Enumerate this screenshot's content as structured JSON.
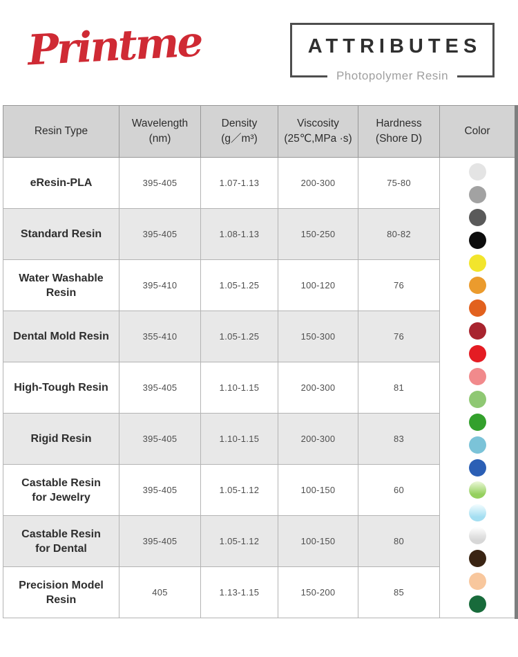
{
  "brand": {
    "logo_text": "Printme",
    "logo_color": "#cf2a34"
  },
  "badge": {
    "title": "ATTRIBUTES",
    "subtitle": "Photopolymer Resin"
  },
  "table": {
    "columns": [
      {
        "label": "Resin Type",
        "sub": ""
      },
      {
        "label": "Wavelength",
        "sub": "(nm)"
      },
      {
        "label": "Density",
        "sub": "(g／m³)"
      },
      {
        "label": "Viscosity",
        "sub": "(25℃,MPa ·s)"
      },
      {
        "label": "Hardness",
        "sub": "(Shore D)"
      },
      {
        "label": "Color",
        "sub": ""
      }
    ],
    "rows": [
      {
        "resin_type": "eResin-PLA",
        "wavelength": "395-405",
        "density": "1.07-1.13",
        "viscosity": "200-300",
        "hardness": "75-80"
      },
      {
        "resin_type": "Standard Resin",
        "wavelength": "395-405",
        "density": "1.08-1.13",
        "viscosity": "150-250",
        "hardness": "80-82"
      },
      {
        "resin_type": "Water Washable\nResin",
        "wavelength": "395-410",
        "density": "1.05-1.25",
        "viscosity": "100-120",
        "hardness": "76"
      },
      {
        "resin_type": "Dental Mold Resin",
        "wavelength": "355-410",
        "density": "1.05-1.25",
        "viscosity": "150-300",
        "hardness": "76"
      },
      {
        "resin_type": "High-Tough Resin",
        "wavelength": "395-405",
        "density": "1.10-1.15",
        "viscosity": "200-300",
        "hardness": "81"
      },
      {
        "resin_type": "Rigid Resin",
        "wavelength": "395-405",
        "density": "1.10-1.15",
        "viscosity": "200-300",
        "hardness": "83"
      },
      {
        "resin_type": "Castable Resin\nfor Jewelry",
        "wavelength": "395-405",
        "density": "1.05-1.12",
        "viscosity": "100-150",
        "hardness": "60"
      },
      {
        "resin_type": "Castable Resin\nfor Dental",
        "wavelength": "395-405",
        "density": "1.05-1.12",
        "viscosity": "100-150",
        "hardness": "80"
      },
      {
        "resin_type": "Precision Model\nResin",
        "wavelength": "405",
        "density": "1.13-1.15",
        "viscosity": "150-200",
        "hardness": "85"
      }
    ],
    "color_swatches": [
      {
        "name": "light-gray",
        "color": "#e4e4e4"
      },
      {
        "name": "gray",
        "color": "#a2a2a2"
      },
      {
        "name": "dark-gray",
        "color": "#5a5a5a"
      },
      {
        "name": "black",
        "color": "#0c0c0c"
      },
      {
        "name": "yellow",
        "color": "#f2e52c"
      },
      {
        "name": "amber-orange",
        "color": "#eb9b2d"
      },
      {
        "name": "orange",
        "color": "#e2611e"
      },
      {
        "name": "dark-red",
        "color": "#a8242e"
      },
      {
        "name": "red",
        "color": "#e41c23"
      },
      {
        "name": "pink",
        "color": "#f18a8c"
      },
      {
        "name": "light-green",
        "color": "#8fc873"
      },
      {
        "name": "green",
        "color": "#33a02c"
      },
      {
        "name": "sky-blue",
        "color": "#7bc3d8"
      },
      {
        "name": "blue",
        "color": "#2b5fb5"
      },
      {
        "name": "glossy-lime",
        "color": "#95d05e",
        "color_top": "#ecf8d9"
      },
      {
        "name": "glossy-aqua",
        "color": "#a3def1",
        "color_top": "#f4fdff"
      },
      {
        "name": "glossy-white",
        "color": "#d7d7d7",
        "color_top": "#ffffff"
      },
      {
        "name": "dark-brown",
        "color": "#3a2413"
      },
      {
        "name": "peach",
        "color": "#f8c79d"
      },
      {
        "name": "dark-green",
        "color": "#186b3b"
      }
    ]
  },
  "theme": {
    "header_bg": "#d3d3d3",
    "alt_row_bg": "#e8e8e8",
    "border_color": "#b3b3b3",
    "edge_strip": "#7d7f7f",
    "accent_red": "#cf2a34",
    "subtitle_gray": "#9f9f9f"
  }
}
